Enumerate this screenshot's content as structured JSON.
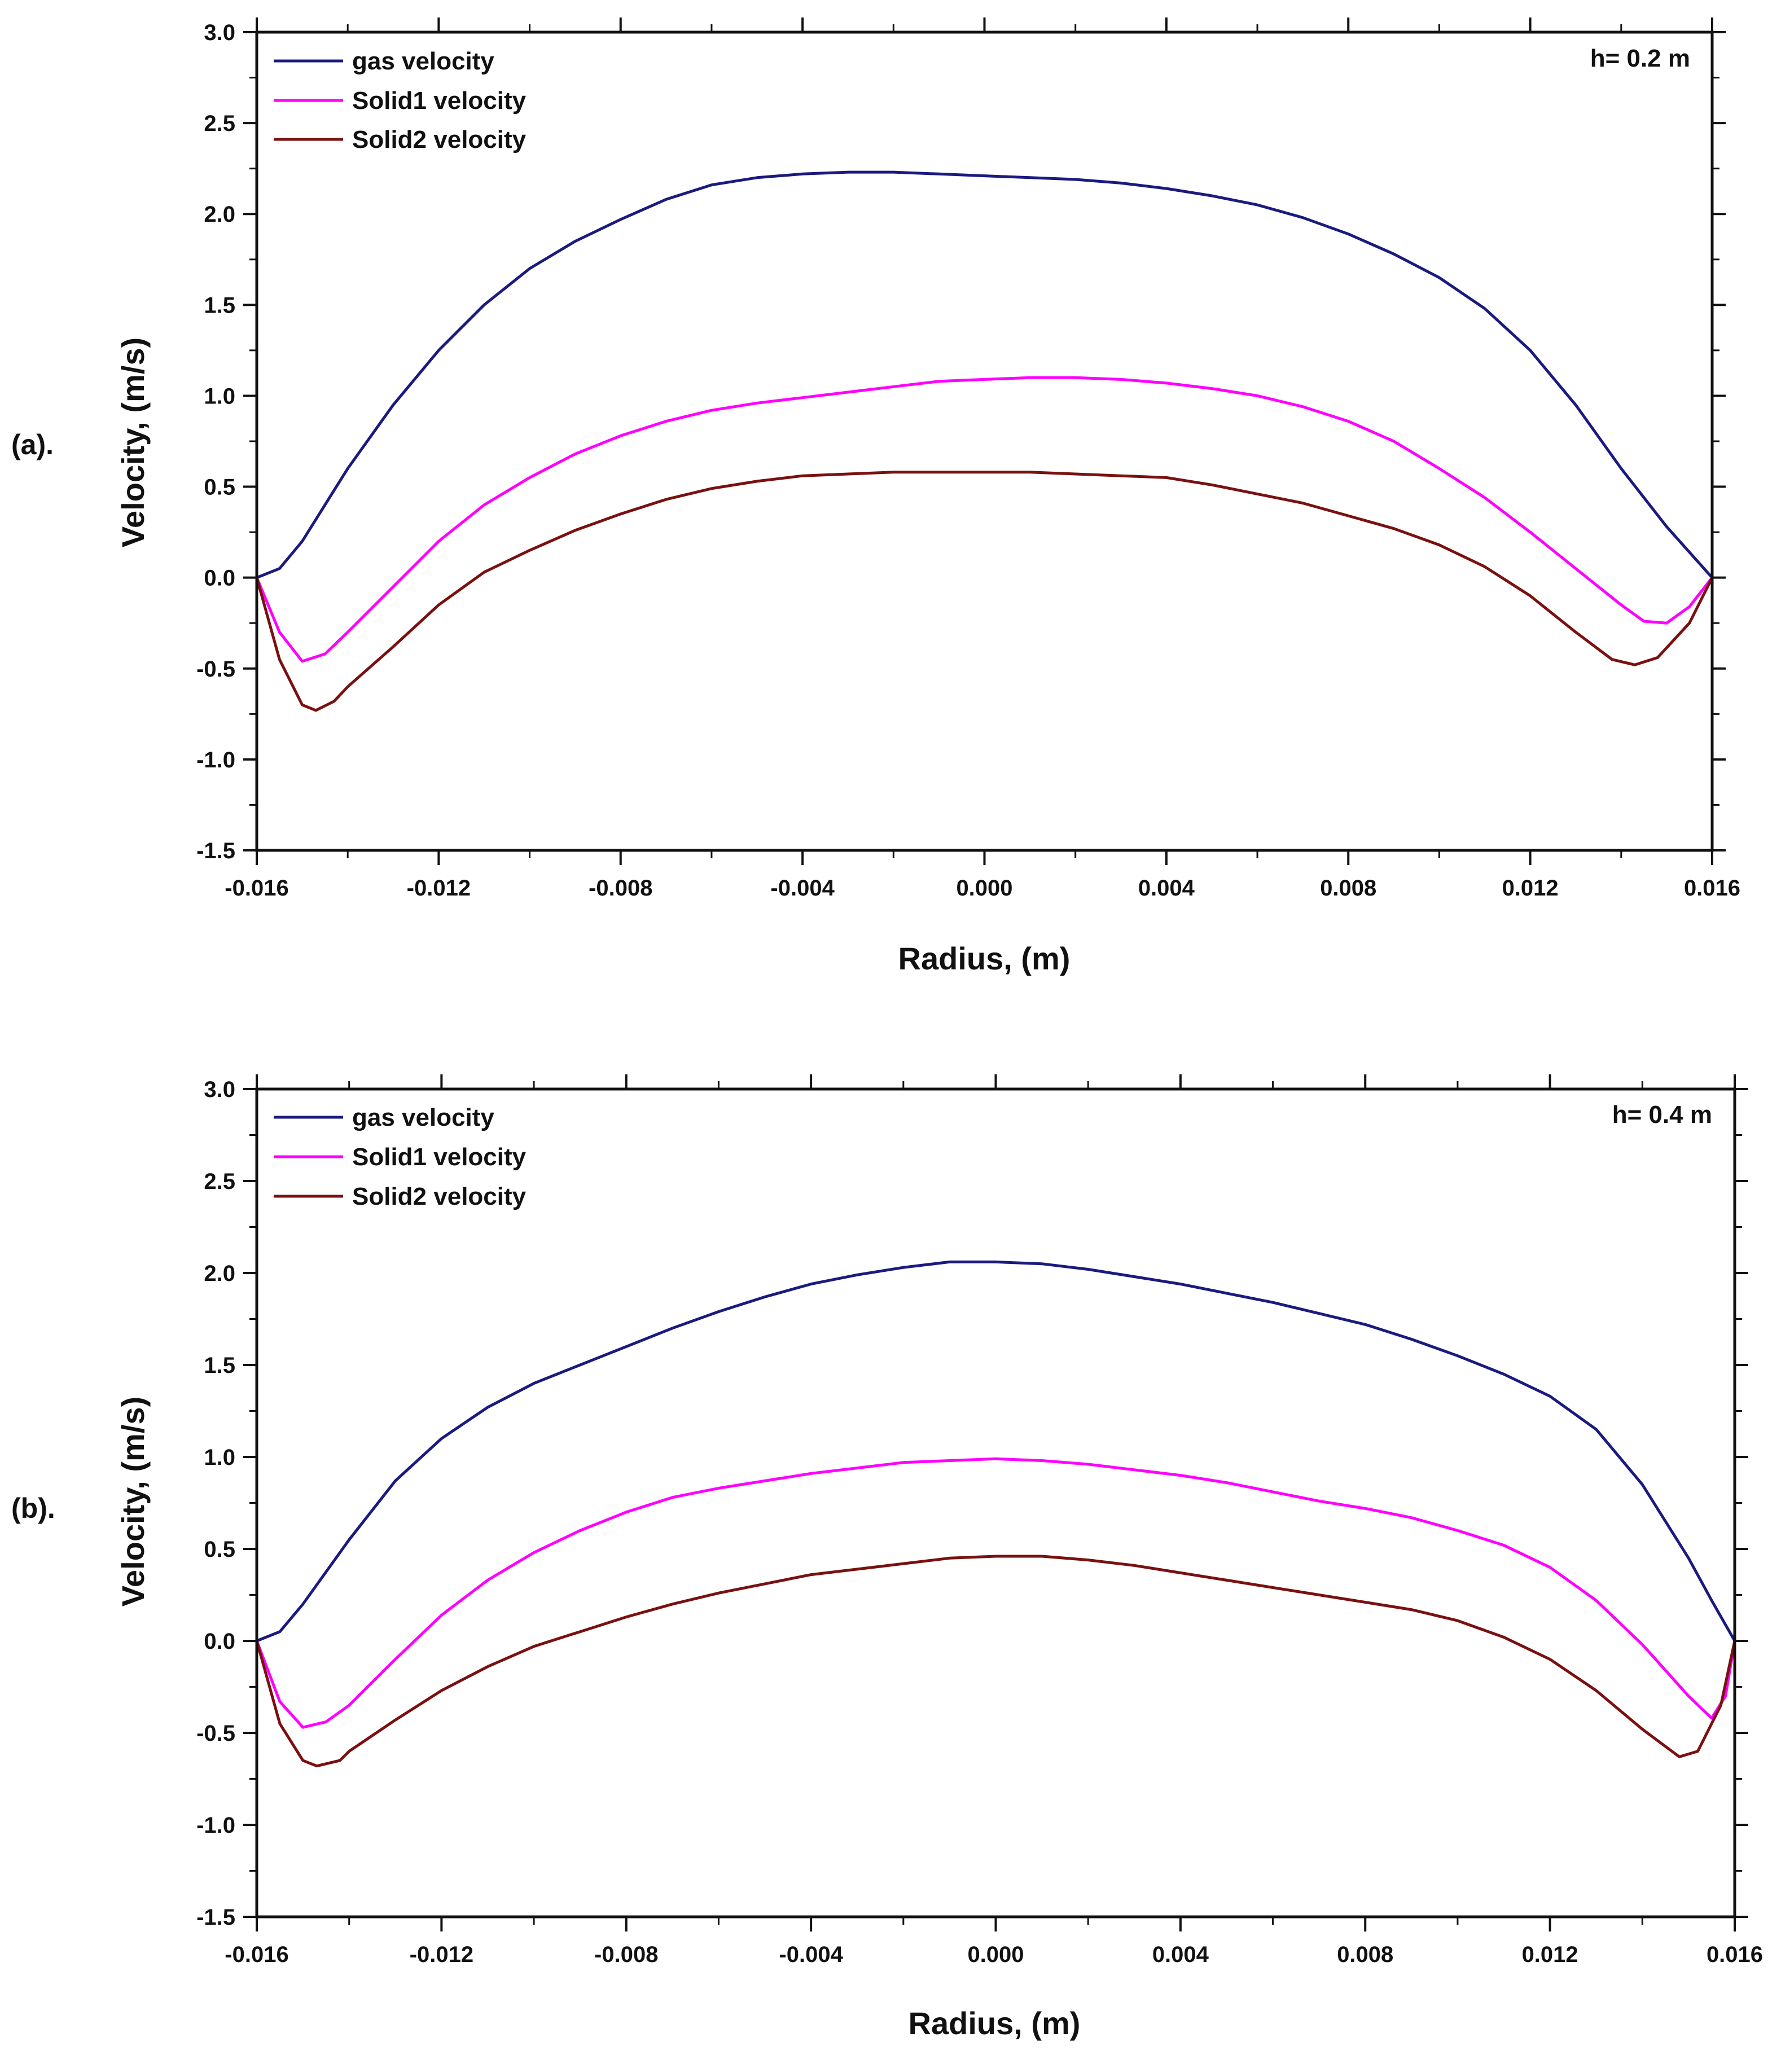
{
  "chart_data": [
    {
      "type": "line",
      "panel_label": "(a).",
      "annotation": "h= 0.2 m",
      "xlabel": "Radius, (m)",
      "ylabel": "Velocity, (m/s)",
      "xlim": [
        -0.016,
        0.016
      ],
      "ylim": [
        -1.5,
        3.0
      ],
      "x_ticks": [
        "-0.016",
        "-0.012",
        "-0.008",
        "-0.004",
        "0.000",
        "0.004",
        "0.008",
        "0.012",
        "0.016"
      ],
      "y_ticks": [
        "-1.5",
        "-1.0",
        "-0.5",
        "0.0",
        "0.5",
        "1.0",
        "1.5",
        "2.0",
        "2.5",
        "3.0"
      ],
      "legend_position": "top-left",
      "series": [
        {
          "name": "gas velocity",
          "color": "#1a1a80",
          "points": [
            [
              -0.016,
              0.0
            ],
            [
              -0.0155,
              0.05
            ],
            [
              -0.015,
              0.2
            ],
            [
              -0.014,
              0.6
            ],
            [
              -0.013,
              0.95
            ],
            [
              -0.012,
              1.25
            ],
            [
              -0.011,
              1.5
            ],
            [
              -0.01,
              1.7
            ],
            [
              -0.009,
              1.85
            ],
            [
              -0.008,
              1.97
            ],
            [
              -0.007,
              2.08
            ],
            [
              -0.006,
              2.16
            ],
            [
              -0.005,
              2.2
            ],
            [
              -0.004,
              2.22
            ],
            [
              -0.003,
              2.23
            ],
            [
              -0.002,
              2.23
            ],
            [
              -0.001,
              2.22
            ],
            [
              0.0,
              2.21
            ],
            [
              0.001,
              2.2
            ],
            [
              0.002,
              2.19
            ],
            [
              0.003,
              2.17
            ],
            [
              0.004,
              2.14
            ],
            [
              0.005,
              2.1
            ],
            [
              0.006,
              2.05
            ],
            [
              0.007,
              1.98
            ],
            [
              0.008,
              1.89
            ],
            [
              0.009,
              1.78
            ],
            [
              0.01,
              1.65
            ],
            [
              0.011,
              1.48
            ],
            [
              0.012,
              1.25
            ],
            [
              0.013,
              0.95
            ],
            [
              0.014,
              0.6
            ],
            [
              0.015,
              0.28
            ],
            [
              0.016,
              0.0
            ]
          ]
        },
        {
          "name": "Solid1 velocity",
          "color": "#ff00ff",
          "points": [
            [
              -0.016,
              0.0
            ],
            [
              -0.0155,
              -0.3
            ],
            [
              -0.015,
              -0.46
            ],
            [
              -0.0145,
              -0.42
            ],
            [
              -0.014,
              -0.3
            ],
            [
              -0.013,
              -0.05
            ],
            [
              -0.012,
              0.2
            ],
            [
              -0.011,
              0.4
            ],
            [
              -0.01,
              0.55
            ],
            [
              -0.009,
              0.68
            ],
            [
              -0.008,
              0.78
            ],
            [
              -0.007,
              0.86
            ],
            [
              -0.006,
              0.92
            ],
            [
              -0.005,
              0.96
            ],
            [
              -0.004,
              0.99
            ],
            [
              -0.003,
              1.02
            ],
            [
              -0.002,
              1.05
            ],
            [
              -0.001,
              1.08
            ],
            [
              0.0,
              1.09
            ],
            [
              0.001,
              1.1
            ],
            [
              0.002,
              1.1
            ],
            [
              0.003,
              1.09
            ],
            [
              0.004,
              1.07
            ],
            [
              0.005,
              1.04
            ],
            [
              0.006,
              1.0
            ],
            [
              0.007,
              0.94
            ],
            [
              0.008,
              0.86
            ],
            [
              0.009,
              0.75
            ],
            [
              0.01,
              0.6
            ],
            [
              0.011,
              0.44
            ],
            [
              0.012,
              0.25
            ],
            [
              0.013,
              0.05
            ],
            [
              0.014,
              -0.15
            ],
            [
              0.0145,
              -0.24
            ],
            [
              0.015,
              -0.25
            ],
            [
              0.0155,
              -0.16
            ],
            [
              0.016,
              0.0
            ]
          ]
        },
        {
          "name": "Solid2 velocity",
          "color": "#7a1010",
          "points": [
            [
              -0.016,
              0.0
            ],
            [
              -0.0155,
              -0.45
            ],
            [
              -0.015,
              -0.7
            ],
            [
              -0.0147,
              -0.73
            ],
            [
              -0.0143,
              -0.68
            ],
            [
              -0.014,
              -0.6
            ],
            [
              -0.013,
              -0.38
            ],
            [
              -0.012,
              -0.15
            ],
            [
              -0.011,
              0.03
            ],
            [
              -0.01,
              0.15
            ],
            [
              -0.009,
              0.26
            ],
            [
              -0.008,
              0.35
            ],
            [
              -0.007,
              0.43
            ],
            [
              -0.006,
              0.49
            ],
            [
              -0.005,
              0.53
            ],
            [
              -0.004,
              0.56
            ],
            [
              -0.003,
              0.57
            ],
            [
              -0.002,
              0.58
            ],
            [
              -0.001,
              0.58
            ],
            [
              0.0,
              0.58
            ],
            [
              0.001,
              0.58
            ],
            [
              0.002,
              0.57
            ],
            [
              0.003,
              0.56
            ],
            [
              0.004,
              0.55
            ],
            [
              0.005,
              0.51
            ],
            [
              0.006,
              0.46
            ],
            [
              0.007,
              0.41
            ],
            [
              0.008,
              0.34
            ],
            [
              0.009,
              0.27
            ],
            [
              0.01,
              0.18
            ],
            [
              0.011,
              0.06
            ],
            [
              0.012,
              -0.1
            ],
            [
              0.013,
              -0.3
            ],
            [
              0.0138,
              -0.45
            ],
            [
              0.0143,
              -0.48
            ],
            [
              0.0148,
              -0.44
            ],
            [
              0.0155,
              -0.25
            ],
            [
              0.016,
              0.0
            ]
          ]
        }
      ]
    },
    {
      "type": "line",
      "panel_label": "(b).",
      "annotation": "h= 0.4 m",
      "xlabel": "Radius, (m)",
      "ylabel": "Velocity, (m/s)",
      "xlim": [
        -0.016,
        0.016
      ],
      "ylim": [
        -1.5,
        3.0
      ],
      "x_ticks": [
        "-0.016",
        "-0.012",
        "-0.008",
        "-0.004",
        "0.000",
        "0.004",
        "0.008",
        "0.012",
        "0.016"
      ],
      "y_ticks": [
        "-1.5",
        "-1.0",
        "-0.5",
        "0.0",
        "0.5",
        "1.0",
        "1.5",
        "2.0",
        "2.5",
        "3.0"
      ],
      "legend_position": "top-left",
      "series": [
        {
          "name": "gas velocity",
          "color": "#1a1a80",
          "points": [
            [
              -0.016,
              0.0
            ],
            [
              -0.0155,
              0.05
            ],
            [
              -0.015,
              0.2
            ],
            [
              -0.014,
              0.55
            ],
            [
              -0.013,
              0.87
            ],
            [
              -0.012,
              1.1
            ],
            [
              -0.011,
              1.27
            ],
            [
              -0.01,
              1.4
            ],
            [
              -0.009,
              1.5
            ],
            [
              -0.008,
              1.6
            ],
            [
              -0.007,
              1.7
            ],
            [
              -0.006,
              1.79
            ],
            [
              -0.005,
              1.87
            ],
            [
              -0.004,
              1.94
            ],
            [
              -0.003,
              1.99
            ],
            [
              -0.002,
              2.03
            ],
            [
              -0.001,
              2.06
            ],
            [
              0.0,
              2.06
            ],
            [
              0.001,
              2.05
            ],
            [
              0.002,
              2.02
            ],
            [
              0.003,
              1.98
            ],
            [
              0.004,
              1.94
            ],
            [
              0.005,
              1.89
            ],
            [
              0.006,
              1.84
            ],
            [
              0.007,
              1.78
            ],
            [
              0.008,
              1.72
            ],
            [
              0.009,
              1.64
            ],
            [
              0.01,
              1.55
            ],
            [
              0.011,
              1.45
            ],
            [
              0.012,
              1.33
            ],
            [
              0.013,
              1.15
            ],
            [
              0.014,
              0.85
            ],
            [
              0.015,
              0.45
            ],
            [
              0.0155,
              0.22
            ],
            [
              0.016,
              0.0
            ]
          ]
        },
        {
          "name": "Solid1 velocity",
          "color": "#ff00ff",
          "points": [
            [
              -0.016,
              0.0
            ],
            [
              -0.0155,
              -0.33
            ],
            [
              -0.015,
              -0.47
            ],
            [
              -0.0145,
              -0.44
            ],
            [
              -0.014,
              -0.35
            ],
            [
              -0.013,
              -0.1
            ],
            [
              -0.012,
              0.14
            ],
            [
              -0.011,
              0.33
            ],
            [
              -0.01,
              0.48
            ],
            [
              -0.009,
              0.6
            ],
            [
              -0.008,
              0.7
            ],
            [
              -0.007,
              0.78
            ],
            [
              -0.006,
              0.83
            ],
            [
              -0.005,
              0.87
            ],
            [
              -0.004,
              0.91
            ],
            [
              -0.003,
              0.94
            ],
            [
              -0.002,
              0.97
            ],
            [
              -0.001,
              0.98
            ],
            [
              0.0,
              0.99
            ],
            [
              0.001,
              0.98
            ],
            [
              0.002,
              0.96
            ],
            [
              0.003,
              0.93
            ],
            [
              0.004,
              0.9
            ],
            [
              0.005,
              0.86
            ],
            [
              0.006,
              0.81
            ],
            [
              0.007,
              0.76
            ],
            [
              0.008,
              0.72
            ],
            [
              0.009,
              0.67
            ],
            [
              0.01,
              0.6
            ],
            [
              0.011,
              0.52
            ],
            [
              0.012,
              0.4
            ],
            [
              0.013,
              0.22
            ],
            [
              0.014,
              -0.02
            ],
            [
              0.015,
              -0.3
            ],
            [
              0.0155,
              -0.42
            ],
            [
              0.0158,
              -0.3
            ],
            [
              0.016,
              0.0
            ]
          ]
        },
        {
          "name": "Solid2 velocity",
          "color": "#7a1010",
          "points": [
            [
              -0.016,
              0.0
            ],
            [
              -0.0155,
              -0.45
            ],
            [
              -0.015,
              -0.65
            ],
            [
              -0.0147,
              -0.68
            ],
            [
              -0.0142,
              -0.65
            ],
            [
              -0.014,
              -0.6
            ],
            [
              -0.013,
              -0.43
            ],
            [
              -0.012,
              -0.27
            ],
            [
              -0.011,
              -0.14
            ],
            [
              -0.01,
              -0.03
            ],
            [
              -0.009,
              0.05
            ],
            [
              -0.008,
              0.13
            ],
            [
              -0.007,
              0.2
            ],
            [
              -0.006,
              0.26
            ],
            [
              -0.005,
              0.31
            ],
            [
              -0.004,
              0.36
            ],
            [
              -0.003,
              0.39
            ],
            [
              -0.002,
              0.42
            ],
            [
              -0.001,
              0.45
            ],
            [
              0.0,
              0.46
            ],
            [
              0.001,
              0.46
            ],
            [
              0.002,
              0.44
            ],
            [
              0.003,
              0.41
            ],
            [
              0.004,
              0.37
            ],
            [
              0.005,
              0.33
            ],
            [
              0.006,
              0.29
            ],
            [
              0.007,
              0.25
            ],
            [
              0.008,
              0.21
            ],
            [
              0.009,
              0.17
            ],
            [
              0.01,
              0.11
            ],
            [
              0.011,
              0.02
            ],
            [
              0.012,
              -0.1
            ],
            [
              0.013,
              -0.27
            ],
            [
              0.014,
              -0.48
            ],
            [
              0.0148,
              -0.63
            ],
            [
              0.0152,
              -0.6
            ],
            [
              0.0157,
              -0.35
            ],
            [
              0.016,
              0.0
            ]
          ]
        }
      ]
    }
  ]
}
